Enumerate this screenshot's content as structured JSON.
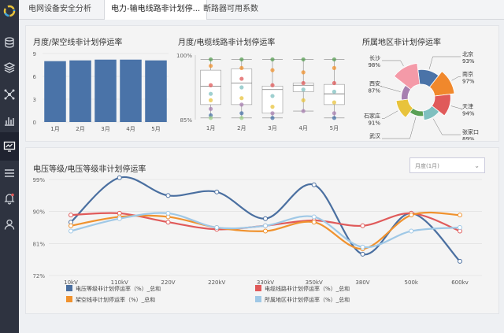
{
  "tabs": [
    "电网设备安全分析",
    "电力-输电线路非计划停...",
    "断路器可用系数"
  ],
  "panels": {
    "bar_title": "月度/架空线非计划停运率",
    "box_title": "月度/电缆线路非计划停运率",
    "rose_title": "所属地区非计划停运率",
    "line_title": "电压等级/电压等级非计划停运率"
  },
  "select": {
    "value": "月度(1月)"
  },
  "colors": {
    "bar": "#4a73a8",
    "rose": [
      "#4a73a8",
      "#f0882c",
      "#e05a5a",
      "#7fc0c0",
      "#5aa055",
      "#e8c33c",
      "#a77fb0",
      "#f49aa8",
      "#8a6e58"
    ],
    "series": [
      "#4a6fa0",
      "#e05a5a",
      "#f0922e",
      "#9fc8e6"
    ]
  },
  "chart_data": [
    {
      "type": "bar",
      "title": "月度/架空线非计划停运率",
      "categories": [
        "1月",
        "2月",
        "3月",
        "4月",
        "5月"
      ],
      "values": [
        8.0,
        8.1,
        8.2,
        8.2,
        8.1
      ],
      "yticks": [
        "0",
        "3",
        "6",
        "9"
      ],
      "ylim": [
        0,
        9
      ],
      "grid": true
    },
    {
      "type": "box",
      "title": "月度/电缆线路非计划停运率",
      "categories": [
        "1月",
        "2月",
        "3月",
        "4月",
        "5月"
      ],
      "yticks": [
        "85%",
        "100%"
      ],
      "ylim": [
        85,
        100
      ],
      "boxes": [
        {
          "min": 85.4,
          "q1": 88.5,
          "median": 92.8,
          "q3": 96.5,
          "max": 99.0
        },
        {
          "min": 85.4,
          "q1": 88.5,
          "median": 93.5,
          "q3": 96.8,
          "max": 99.0
        },
        {
          "min": 85.4,
          "q1": 86.5,
          "median": 92.0,
          "q3": 92.8,
          "max": 99.0
        },
        {
          "min": 87.0,
          "q1": 91.5,
          "median": 93.0,
          "q3": 93.5,
          "max": 99.0
        },
        {
          "min": 85.4,
          "q1": 88.5,
          "median": 91.0,
          "q3": 93.2,
          "max": 99.0
        }
      ],
      "points": [
        [
          99.0,
          97.5,
          93.0,
          91.0,
          89.5,
          87.5,
          86.0,
          85.4
        ],
        [
          99.0,
          97.0,
          94.5,
          92.5,
          90.0,
          88.5,
          86.5,
          85.4
        ],
        [
          99.0,
          96.5,
          93.0,
          90.5,
          88.0,
          86.5,
          85.4
        ],
        [
          99.0,
          96.0,
          93.5,
          92.0,
          89.5,
          87.0
        ],
        [
          99.0,
          97.0,
          93.5,
          91.5,
          89.0,
          86.5,
          85.4
        ]
      ]
    },
    {
      "type": "pie",
      "title": "所属地区非计划停运率",
      "labels": [
        "北京",
        "南京",
        "天津",
        "张家口",
        "武汉",
        "石家庄",
        "西安",
        "长沙"
      ],
      "values": [
        93,
        97,
        94,
        89,
        86,
        91,
        87,
        98
      ],
      "annotations": [
        "93%",
        "97%",
        "94%",
        "89%",
        "86%",
        "91%",
        "87%",
        "98%"
      ]
    },
    {
      "type": "line",
      "title": "电压等级/电压等级非计划停运率",
      "categories": [
        "10kV",
        "110kV",
        "220V",
        "220kV",
        "330kV",
        "350kV",
        "380V",
        "500k",
        "600kv"
      ],
      "yticks": [
        "72%",
        "81%",
        "90%",
        "99%"
      ],
      "ylim": [
        72,
        99
      ],
      "grid": true,
      "series": [
        {
          "name": "电压等级非计划停运率（%）_总和",
          "values": [
            87.0,
            99.5,
            94.5,
            95.5,
            88.0,
            97.5,
            78.0,
            89.5,
            76.0
          ]
        },
        {
          "name": "电缆线路非计划停运率（%）_总和",
          "values": [
            89.0,
            89.5,
            87.0,
            85.0,
            86.0,
            87.5,
            86.0,
            89.5,
            84.5
          ]
        },
        {
          "name": "架空线非计划停运率（%）_总和",
          "values": [
            86.0,
            88.5,
            88.5,
            85.5,
            84.5,
            87.0,
            79.5,
            89.0,
            89.0
          ]
        },
        {
          "name": "所属地区非计划停运率（%）_总和",
          "values": [
            84.5,
            88.0,
            89.5,
            85.5,
            86.0,
            88.5,
            80.0,
            84.5,
            85.5
          ]
        }
      ]
    }
  ]
}
